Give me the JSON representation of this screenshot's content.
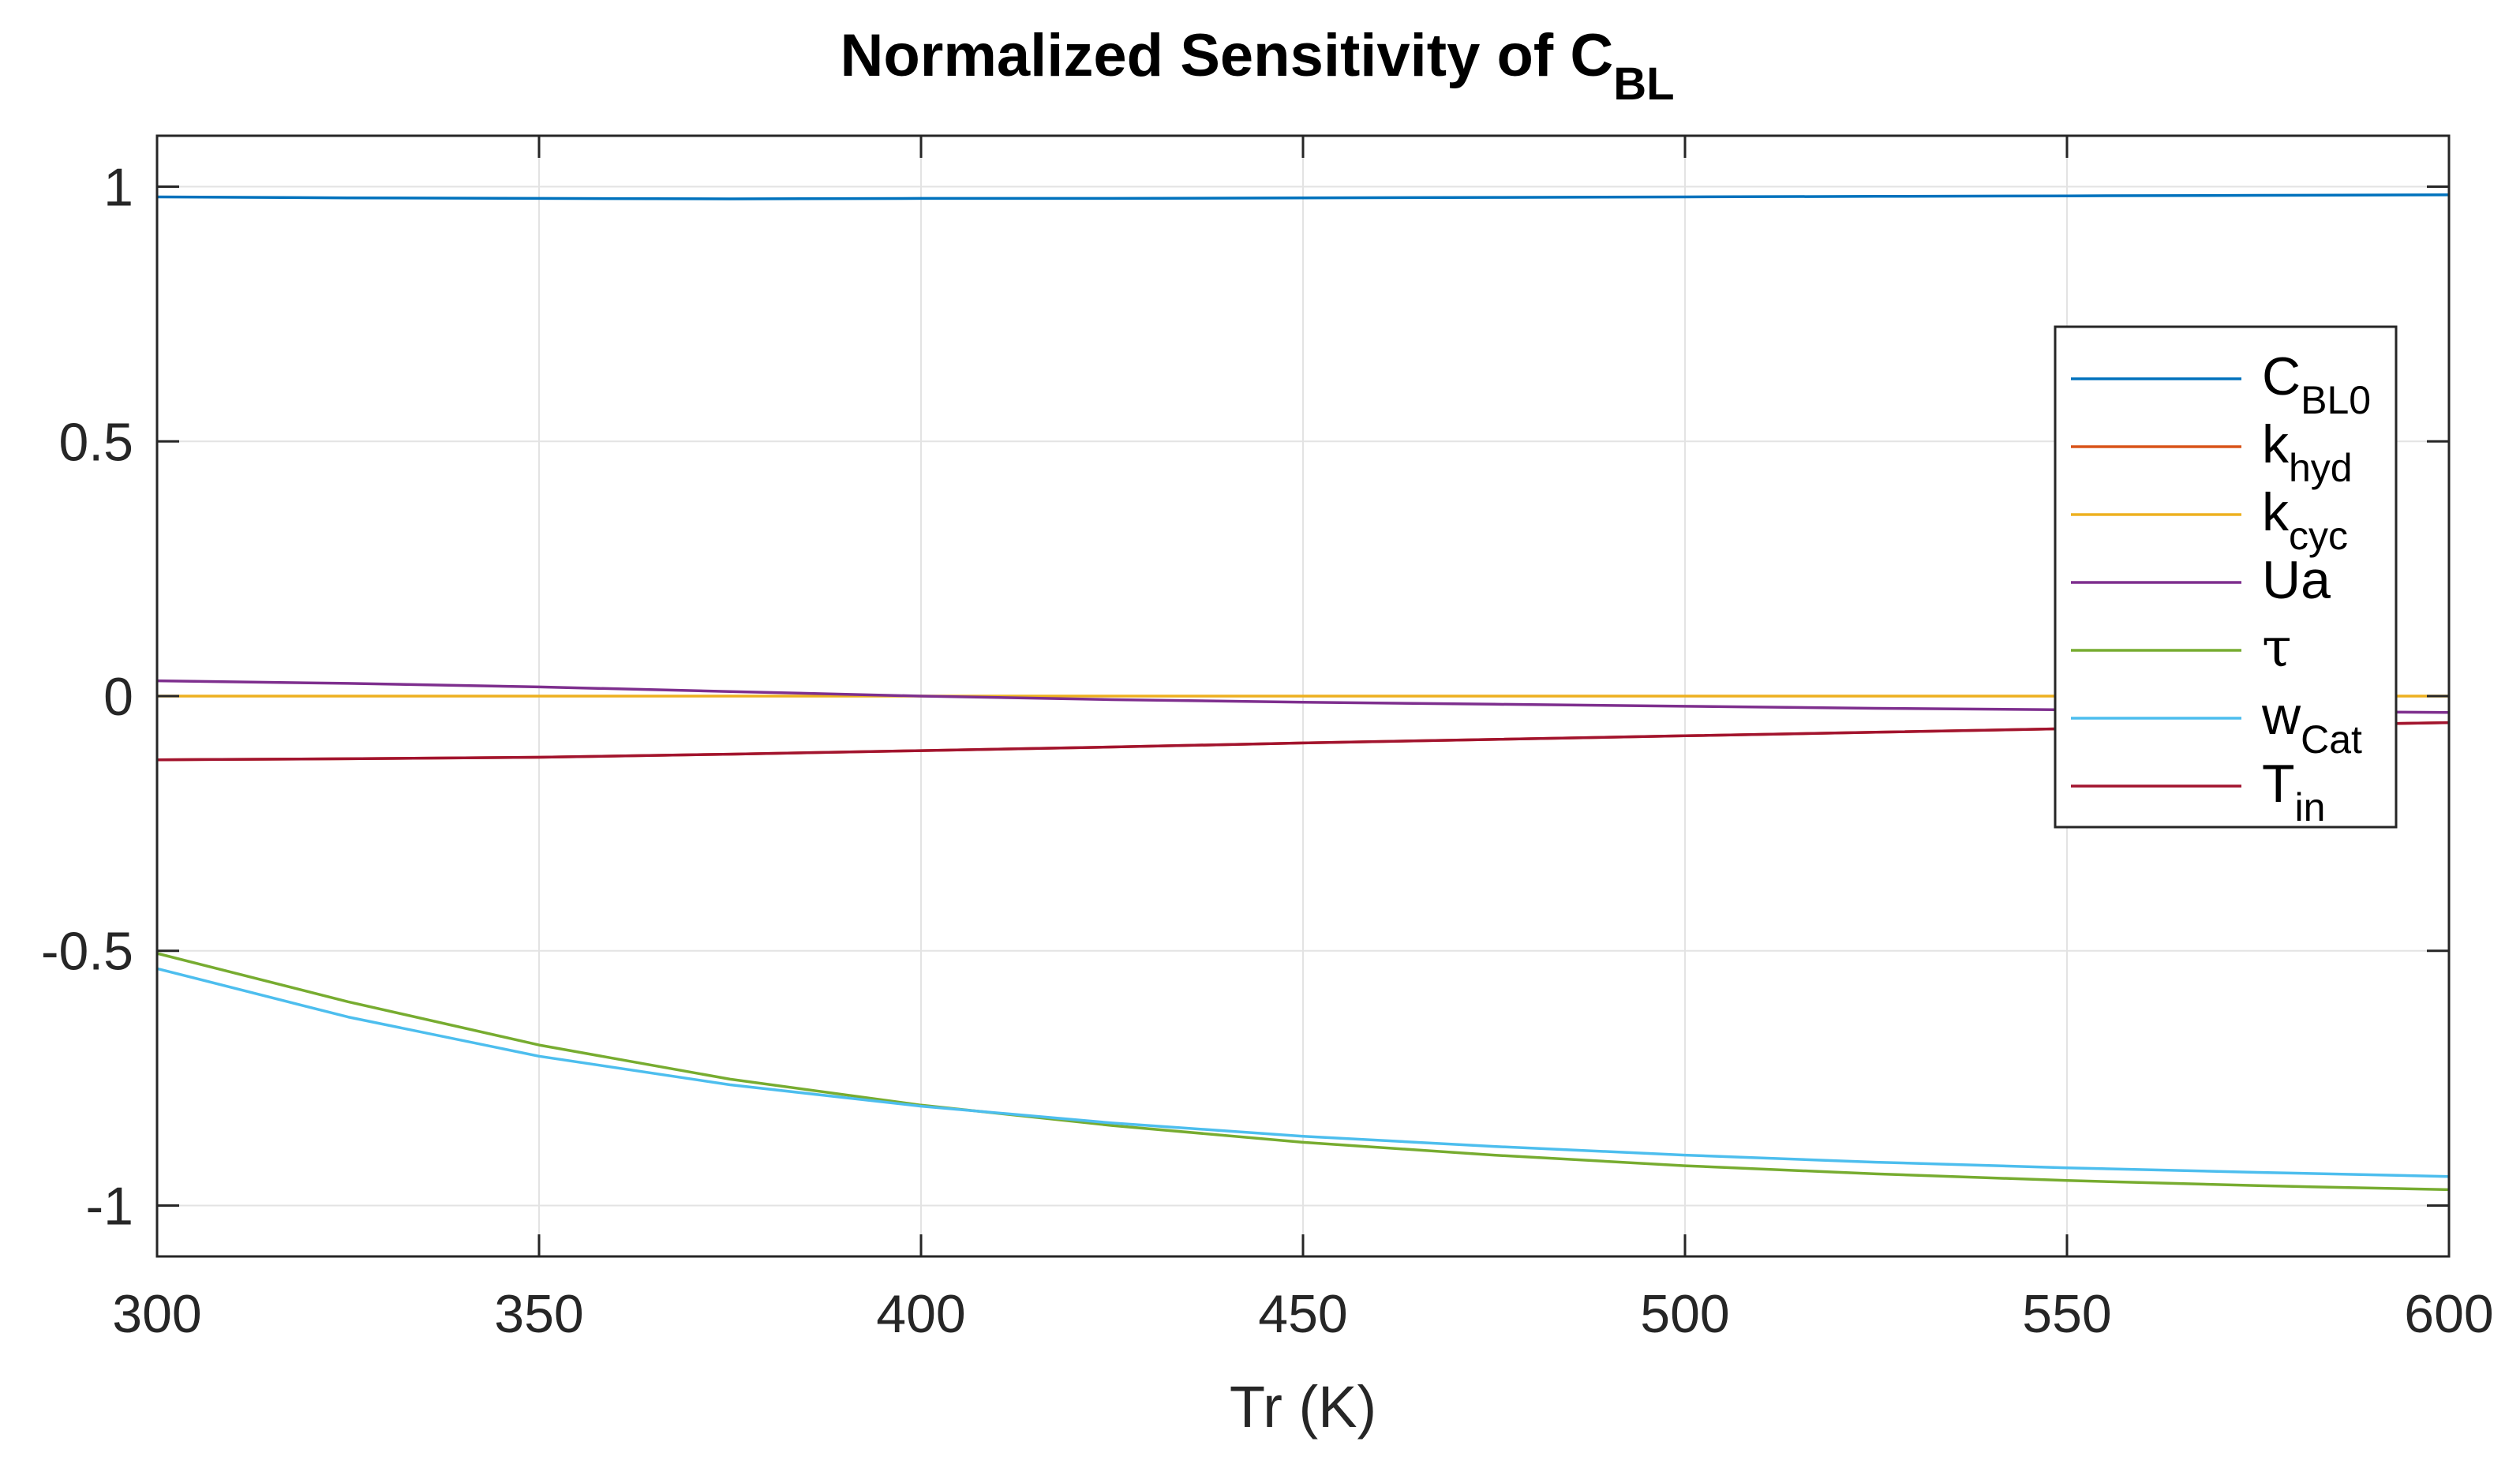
{
  "chart_data": {
    "type": "line",
    "title": "Normalized Sensitivity of C",
    "title_subscript": "BL",
    "xlabel": "Tr (K)",
    "ylabel": "",
    "xlim": [
      300,
      600
    ],
    "ylim": [
      -1.1,
      1.1
    ],
    "xticks": [
      300,
      350,
      400,
      450,
      500,
      550,
      600
    ],
    "yticks": [
      1,
      0.5,
      0,
      -0.5,
      -1
    ],
    "xtick_labels": [
      "300",
      "350",
      "400",
      "450",
      "500",
      "550",
      "600"
    ],
    "ytick_labels": [
      "1",
      "0.5",
      "0",
      "-0.5",
      "-1"
    ],
    "grid": true,
    "legend_position": "right",
    "x": [
      300,
      325,
      350,
      375,
      400,
      425,
      450,
      475,
      500,
      525,
      550,
      575,
      600
    ],
    "series": [
      {
        "name": "C",
        "sub": "BL0",
        "color": "#0072BD",
        "values": [
          0.98,
          0.978,
          0.977,
          0.976,
          0.977,
          0.977,
          0.978,
          0.979,
          0.98,
          0.981,
          0.982,
          0.983,
          0.984
        ]
      },
      {
        "name": "k",
        "sub": "hyd",
        "color": "#D95319",
        "values": [
          -0.125,
          -0.123,
          -0.12,
          -0.114,
          -0.107,
          -0.1,
          -0.092,
          -0.085,
          -0.078,
          -0.071,
          -0.064,
          -0.058,
          -0.052
        ]
      },
      {
        "name": "k",
        "sub": "cyc",
        "color": "#EDB120",
        "values": [
          0.0,
          0.0,
          0.0,
          0.0,
          0.0,
          0.0,
          0.0,
          0.0,
          0.0,
          0.0,
          0.0,
          0.0,
          0.0
        ]
      },
      {
        "name": "Ua",
        "sub": "",
        "color": "#7E2F8E",
        "values": [
          0.03,
          0.025,
          0.018,
          0.009,
          0.0,
          -0.007,
          -0.012,
          -0.016,
          -0.02,
          -0.024,
          -0.027,
          -0.03,
          -0.032
        ]
      },
      {
        "name": "τ",
        "sub": "",
        "color": "#77AC30",
        "values": [
          -0.505,
          -0.6,
          -0.685,
          -0.752,
          -0.803,
          -0.843,
          -0.876,
          -0.901,
          -0.922,
          -0.938,
          -0.951,
          -0.961,
          -0.969
        ]
      },
      {
        "name": "w",
        "sub": "Cat",
        "color": "#4DBEEE",
        "values": [
          -0.535,
          -0.63,
          -0.707,
          -0.763,
          -0.805,
          -0.838,
          -0.864,
          -0.884,
          -0.901,
          -0.915,
          -0.926,
          -0.935,
          -0.943
        ]
      },
      {
        "name": "T",
        "sub": "in",
        "color": "#A2142F",
        "values": [
          -0.125,
          -0.123,
          -0.12,
          -0.114,
          -0.107,
          -0.1,
          -0.092,
          -0.085,
          -0.078,
          -0.071,
          -0.064,
          -0.058,
          -0.052
        ]
      }
    ]
  }
}
